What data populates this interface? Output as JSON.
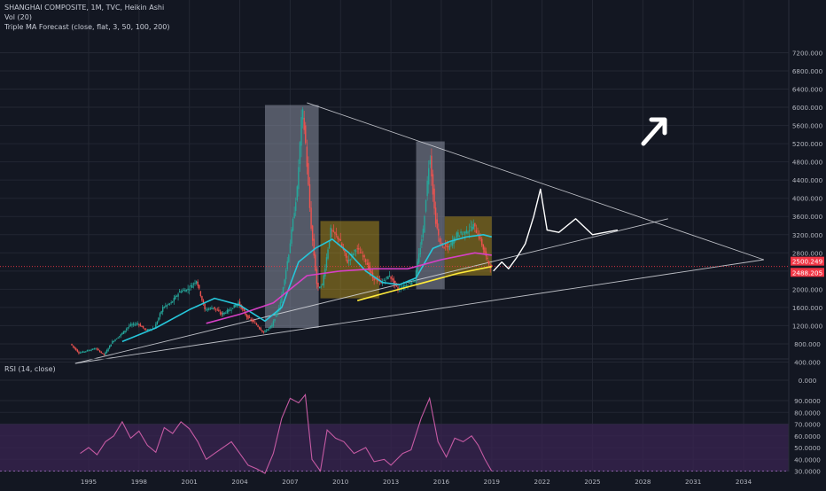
{
  "header": {
    "title": "SHANGHAI COMPOSITE, 1M, TVC, Heikin Ashi",
    "vol": "Vol (20)",
    "ma": "Triple MA Forecast (close, flat, 3, 50, 100, 200)"
  },
  "rsi_panel": {
    "title": "RSI (14, close)"
  },
  "colors": {
    "background": "#131722",
    "grid": "#232733",
    "candle_up": "#26a69a",
    "candle_down": "#ef5350",
    "ma_short": "#d640c6",
    "ma_mid": "#26c6da",
    "ma_long": "#ffeb3b",
    "rsi_line": "#c55aa3",
    "rsi_band": "#3a2452",
    "price_label": "#f23645",
    "box_gray": "#8a8fa0",
    "box_gold": "#c8a21c"
  },
  "chart_data": [
    {
      "type": "line",
      "name": "price",
      "x_ticks": [
        "1995",
        "1998",
        "2001",
        "2004",
        "2007",
        "2010",
        "2013",
        "2016",
        "2019",
        "2022",
        "2025",
        "2028",
        "2031",
        "2034"
      ],
      "y_ticks": [
        "7200.000",
        "6800.000",
        "6400.000",
        "6000.000",
        "5600.000",
        "5200.000",
        "4800.000",
        "4400.000",
        "4000.000",
        "3600.000",
        "3200.000",
        "2800.000",
        "2500.249",
        "2488.205",
        "2000.000",
        "1600.000",
        "1200.000",
        "800.000",
        "400.000",
        "0.000"
      ],
      "ylim": [
        0,
        7400
      ],
      "current_price": 2500.249,
      "ma_value": 2488.205,
      "series": [
        {
          "values": [
            [
              1994.0,
              800
            ],
            [
              1994.5,
              600
            ],
            [
              1995.0,
              650
            ],
            [
              1995.5,
              700
            ],
            [
              1996.0,
              560
            ],
            [
              1996.5,
              850
            ],
            [
              1997.0,
              1000
            ],
            [
              1997.5,
              1200
            ],
            [
              1998.0,
              1250
            ],
            [
              1998.5,
              1100
            ],
            [
              1999.0,
              1150
            ],
            [
              1999.5,
              1600
            ],
            [
              2000.0,
              1700
            ],
            [
              2000.5,
              1950
            ],
            [
              2001.0,
              2000
            ],
            [
              2001.5,
              2200
            ],
            [
              2002.0,
              1550
            ],
            [
              2002.5,
              1600
            ],
            [
              2003.0,
              1450
            ],
            [
              2003.5,
              1550
            ],
            [
              2004.0,
              1700
            ],
            [
              2004.5,
              1400
            ],
            [
              2005.0,
              1250
            ],
            [
              2005.5,
              1050
            ],
            [
              2006.0,
              1200
            ],
            [
              2006.5,
              1700
            ],
            [
              2007.0,
              2800
            ],
            [
              2007.5,
              4200
            ],
            [
              2007.8,
              6000
            ],
            [
              2008.0,
              5200
            ],
            [
              2008.3,
              3500
            ],
            [
              2008.7,
              2000
            ],
            [
              2009.0,
              2100
            ],
            [
              2009.5,
              3300
            ],
            [
              2010.0,
              3100
            ],
            [
              2010.5,
              2600
            ],
            [
              2011.0,
              2900
            ],
            [
              2011.5,
              2700
            ],
            [
              2012.0,
              2250
            ],
            [
              2012.5,
              2150
            ],
            [
              2013.0,
              2300
            ],
            [
              2013.5,
              2000
            ],
            [
              2014.0,
              2100
            ],
            [
              2014.5,
              2200
            ],
            [
              2015.0,
              3300
            ],
            [
              2015.4,
              5000
            ],
            [
              2015.7,
              3600
            ],
            [
              2016.0,
              3000
            ],
            [
              2016.5,
              2900
            ],
            [
              2017.0,
              3200
            ],
            [
              2017.5,
              3250
            ],
            [
              2018.0,
              3400
            ],
            [
              2018.4,
              3100
            ],
            [
              2018.8,
              2650
            ],
            [
              2019.0,
              2500
            ]
          ]
        },
        {
          "name": "MA 50",
          "values": [
            [
              1997.0,
              850
            ],
            [
              1999.0,
              1150
            ],
            [
              2001.0,
              1550
            ],
            [
              2002.5,
              1800
            ],
            [
              2004.0,
              1650
            ],
            [
              2005.5,
              1300
            ],
            [
              2006.5,
              1600
            ],
            [
              2007.5,
              2600
            ],
            [
              2008.5,
              2900
            ],
            [
              2009.5,
              3100
            ],
            [
              2010.5,
              2800
            ],
            [
              2011.5,
              2400
            ],
            [
              2012.5,
              2150
            ],
            [
              2013.5,
              2100
            ],
            [
              2014.5,
              2250
            ],
            [
              2015.5,
              2900
            ],
            [
              2016.5,
              3050
            ],
            [
              2017.5,
              3150
            ],
            [
              2018.5,
              3200
            ],
            [
              2019.0,
              3150
            ]
          ]
        },
        {
          "name": "MA 100",
          "values": [
            [
              2002.0,
              1250
            ],
            [
              2004.0,
              1450
            ],
            [
              2006.0,
              1700
            ],
            [
              2008.0,
              2300
            ],
            [
              2010.0,
              2400
            ],
            [
              2012.0,
              2450
            ],
            [
              2014.0,
              2450
            ],
            [
              2016.0,
              2650
            ],
            [
              2018.0,
              2800
            ],
            [
              2019.0,
              2750
            ]
          ]
        },
        {
          "name": "MA 200",
          "values": [
            [
              2011.0,
              1750
            ],
            [
              2013.0,
              1950
            ],
            [
              2015.0,
              2150
            ],
            [
              2017.0,
              2350
            ],
            [
              2019.0,
              2500
            ]
          ]
        },
        {
          "name": "Forecast",
          "values": [
            [
              2019.1,
              2400
            ],
            [
              2019.6,
              2600
            ],
            [
              2020.0,
              2450
            ],
            [
              2020.5,
              2700
            ],
            [
              2021.0,
              3000
            ],
            [
              2021.5,
              3600
            ],
            [
              2021.9,
              4200
            ],
            [
              2022.3,
              3300
            ],
            [
              2023.0,
              3250
            ],
            [
              2024.0,
              3550
            ],
            [
              2025.0,
              3200
            ],
            [
              2026.5,
              3300
            ]
          ]
        }
      ]
    },
    {
      "type": "line",
      "name": "RSI",
      "y_ticks": [
        "90.0000",
        "80.0000",
        "70.0000",
        "60.0000",
        "50.0000",
        "40.0000",
        "30.0000"
      ],
      "ylim": [
        26,
        97
      ],
      "band": [
        30,
        70
      ],
      "values": [
        [
          1994.5,
          45
        ],
        [
          1995.0,
          50
        ],
        [
          1995.5,
          44
        ],
        [
          1996.0,
          55
        ],
        [
          1996.5,
          60
        ],
        [
          1997.0,
          72
        ],
        [
          1997.5,
          58
        ],
        [
          1998.0,
          64
        ],
        [
          1998.5,
          52
        ],
        [
          1999.0,
          46
        ],
        [
          1999.5,
          67
        ],
        [
          2000.0,
          62
        ],
        [
          2000.5,
          72
        ],
        [
          2001.0,
          66
        ],
        [
          2001.5,
          55
        ],
        [
          2002.0,
          40
        ],
        [
          2002.5,
          45
        ],
        [
          2003.0,
          50
        ],
        [
          2003.5,
          55
        ],
        [
          2004.0,
          45
        ],
        [
          2004.5,
          35
        ],
        [
          2005.0,
          32
        ],
        [
          2005.5,
          28
        ],
        [
          2006.0,
          45
        ],
        [
          2006.5,
          75
        ],
        [
          2007.0,
          92
        ],
        [
          2007.5,
          88
        ],
        [
          2007.9,
          95
        ],
        [
          2008.3,
          40
        ],
        [
          2008.8,
          30
        ],
        [
          2009.2,
          65
        ],
        [
          2009.7,
          58
        ],
        [
          2010.2,
          55
        ],
        [
          2010.8,
          45
        ],
        [
          2011.5,
          50
        ],
        [
          2012.0,
          38
        ],
        [
          2012.6,
          40
        ],
        [
          2013.0,
          35
        ],
        [
          2013.7,
          45
        ],
        [
          2014.2,
          48
        ],
        [
          2014.8,
          75
        ],
        [
          2015.3,
          92
        ],
        [
          2015.8,
          55
        ],
        [
          2016.3,
          42
        ],
        [
          2016.8,
          58
        ],
        [
          2017.3,
          55
        ],
        [
          2017.8,
          60
        ],
        [
          2018.2,
          52
        ],
        [
          2018.6,
          40
        ],
        [
          2019.0,
          30
        ]
      ]
    }
  ]
}
